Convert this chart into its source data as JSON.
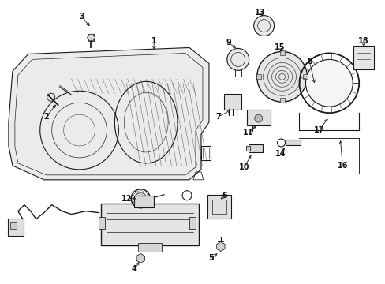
{
  "bg_color": "#ffffff",
  "fig_width": 4.89,
  "fig_height": 3.6,
  "dpi": 100,
  "line_color": "#1a1a1a",
  "text_color": "#111111",
  "font_size": 7.0,
  "font_size_small": 6.0
}
